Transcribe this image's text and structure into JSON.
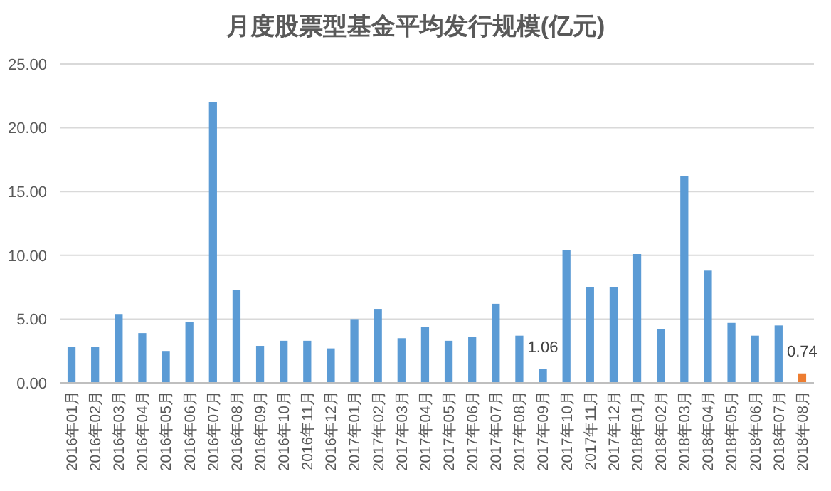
{
  "chart_data": {
    "type": "bar",
    "title": "月度股票型基金平均发行规模(亿元)",
    "categories": [
      "2016年01月",
      "2016年02月",
      "2016年03月",
      "2016年04月",
      "2016年05月",
      "2016年06月",
      "2016年07月",
      "2016年08月",
      "2016年09月",
      "2016年10月",
      "2016年11月",
      "2016年12月",
      "2017年01月",
      "2017年02月",
      "2017年03月",
      "2017年04月",
      "2017年05月",
      "2017年06月",
      "2017年07月",
      "2017年08月",
      "2017年09月",
      "2017年10月",
      "2017年11月",
      "2017年12月",
      "2018年01月",
      "2018年02月",
      "2018年03月",
      "2018年04月",
      "2018年05月",
      "2018年06月",
      "2018年07月",
      "2018年08月"
    ],
    "values": [
      2.8,
      2.8,
      5.4,
      3.9,
      2.5,
      4.8,
      22.0,
      7.3,
      2.9,
      3.3,
      3.3,
      2.7,
      5.0,
      5.8,
      3.5,
      4.4,
      3.3,
      3.6,
      6.2,
      3.7,
      1.06,
      10.4,
      7.5,
      7.5,
      10.1,
      4.2,
      16.2,
      8.8,
      4.7,
      3.7,
      4.5,
      0.74
    ],
    "colors": [
      "#5b9bd5",
      "#5b9bd5",
      "#5b9bd5",
      "#5b9bd5",
      "#5b9bd5",
      "#5b9bd5",
      "#5b9bd5",
      "#5b9bd5",
      "#5b9bd5",
      "#5b9bd5",
      "#5b9bd5",
      "#5b9bd5",
      "#5b9bd5",
      "#5b9bd5",
      "#5b9bd5",
      "#5b9bd5",
      "#5b9bd5",
      "#5b9bd5",
      "#5b9bd5",
      "#5b9bd5",
      "#5b9bd5",
      "#5b9bd5",
      "#5b9bd5",
      "#5b9bd5",
      "#5b9bd5",
      "#5b9bd5",
      "#5b9bd5",
      "#5b9bd5",
      "#5b9bd5",
      "#5b9bd5",
      "#5b9bd5",
      "#ed7d31"
    ],
    "value_labels": [
      null,
      null,
      null,
      null,
      null,
      null,
      null,
      null,
      null,
      null,
      null,
      null,
      null,
      null,
      null,
      null,
      null,
      null,
      null,
      null,
      "1.06",
      null,
      null,
      null,
      null,
      null,
      null,
      null,
      null,
      null,
      null,
      "0.74"
    ],
    "ylim": [
      0,
      25
    ],
    "yticks": [
      {
        "value": 0,
        "label": "0.00"
      },
      {
        "value": 5,
        "label": "5.00"
      },
      {
        "value": 10,
        "label": "10.00"
      },
      {
        "value": 15,
        "label": "15.00"
      },
      {
        "value": 20,
        "label": "20.00"
      },
      {
        "value": 25,
        "label": "25.00"
      }
    ],
    "grid": "y"
  }
}
